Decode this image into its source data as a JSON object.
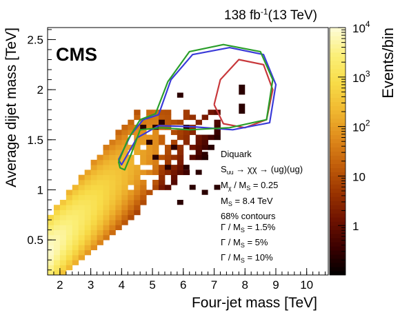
{
  "chart_data": {
    "type": "heatmap",
    "lumi_label": "138 fb",
    "lumi_sup": "-1",
    "lumi_energy": "(13 TeV)",
    "experiment": "CMS",
    "xlabel": "Four-jet mass [TeV]",
    "ylabel": "Average dijet mass [TeV]",
    "zlabel": "Events/bin",
    "xlim": [
      1.6,
      10.7
    ],
    "ylim": [
      0.15,
      2.62
    ],
    "x_ticks": [
      2,
      3,
      4,
      5,
      6,
      7,
      8,
      9,
      10
    ],
    "y_ticks": [
      0.5,
      1,
      1.5,
      2,
      2.5
    ],
    "z_range": [
      0.1,
      10000
    ],
    "z_scale": "log",
    "z_ticks": [
      {
        "value": 1,
        "label": "1",
        "sup": ""
      },
      {
        "value": 10,
        "label": "10",
        "sup": ""
      },
      {
        "value": 100,
        "label": "10",
        "sup": "2"
      },
      {
        "value": 1000,
        "label": "10",
        "sup": "3"
      },
      {
        "value": 10000,
        "label": "10",
        "sup": "4"
      }
    ],
    "colorscale": [
      "#000000",
      "#3a0000",
      "#6e1200",
      "#9a3400",
      "#c25e0a",
      "#e08c1c",
      "#f0b830",
      "#f8dc48",
      "#fbef78",
      "#fefcd8"
    ],
    "grid": false,
    "bins": {
      "x_width": 0.2,
      "y_width": 0.05,
      "cells": [
        {
          "x": 2.0,
          "y": 0.45,
          "z": 5000
        },
        {
          "x": 2.4,
          "y": 0.55,
          "z": 3000
        },
        {
          "x": 3.0,
          "y": 0.75,
          "z": 800
        },
        {
          "x": 3.6,
          "y": 0.95,
          "z": 120
        },
        {
          "x": 4.2,
          "y": 1.05,
          "z": 12
        },
        {
          "x": 4.8,
          "y": 1.1,
          "z": 2
        },
        {
          "x": 6.2,
          "y": 0.95,
          "z": 1
        },
        {
          "x": 7.8,
          "y": 1.9,
          "z": 1
        }
      ]
    },
    "legend": {
      "placement": "lower-right",
      "title": "Diquark",
      "lines": [
        {
          "prefix": "S",
          "prefix_sub": "uu",
          "rest": " → χχ → (ug)(ug)"
        },
        {
          "prefix": "M",
          "prefix_sub": "χ",
          "rest": " / M",
          "rest_sub": "S",
          "tail": " = 0.25"
        },
        {
          "prefix": "M",
          "prefix_sub": "S",
          "rest": " = 8.4 TeV"
        }
      ],
      "contour_header": "68% contours",
      "contours": [
        {
          "label_a": "Γ / M",
          "label_sub": "S",
          "label_b": " = 1.5%",
          "color": "#c8383b"
        },
        {
          "label_a": "Γ / M",
          "label_sub": "S",
          "label_b": " = 5%",
          "color": "#3a3ad8"
        },
        {
          "label_a": "Γ / M",
          "label_sub": "S",
          "label_b": " = 10%",
          "color": "#2a9e2a"
        }
      ]
    }
  }
}
